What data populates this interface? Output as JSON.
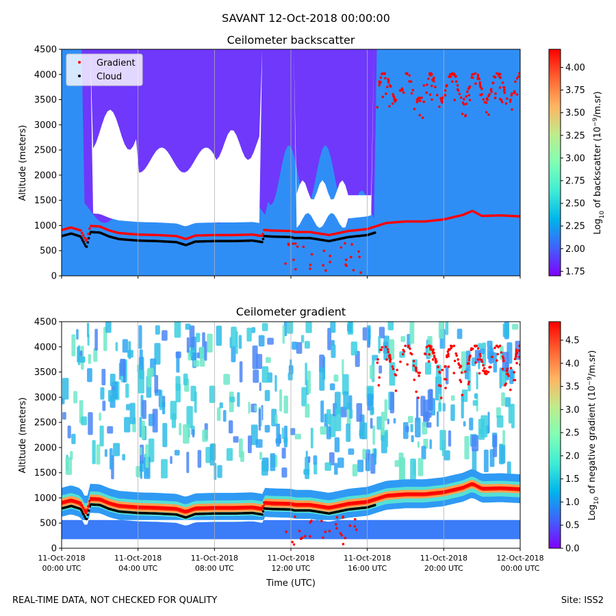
{
  "figure_title": "SAVANT 12-Oct-2018 00:00:00",
  "footer": {
    "left": "REAL-TIME DATA, NOT CHECKED FOR QUALITY",
    "right": "Site: ISS2"
  },
  "colors": {
    "gradient_marker": "#ff0000",
    "cloud_marker": "#000000",
    "colormap": [
      "#8000ff",
      "#4062fa",
      "#00b5eb",
      "#40ecd4",
      "#80ffb4",
      "#c0eb8d",
      "#ffb462",
      "#ff6130",
      "#ff0000"
    ]
  },
  "chart_data": [
    {
      "type": "heatmap",
      "id": "backscatter",
      "title": "Ceilometer backscatter",
      "xlabel": "",
      "ylabel": "Altitude (meters)",
      "xlim_hours": [
        0,
        24
      ],
      "ylim": [
        0,
        4500
      ],
      "yticks": [
        0,
        500,
        1000,
        1500,
        2000,
        2500,
        3000,
        3500,
        4000,
        4500
      ],
      "show_xtick_labels": false,
      "colorbar": {
        "label_prefix": "Log",
        "label_sub": "10",
        "label_mid": " of backscatter (10",
        "label_sup": "−9",
        "label_suffix": "/m.sr)",
        "vmin": 1.7,
        "vmax": 4.2,
        "ticks": [
          "1.75",
          "2.00",
          "2.25",
          "2.50",
          "2.75",
          "3.00",
          "3.25",
          "3.50",
          "3.75",
          "4.00"
        ]
      },
      "legend": {
        "position": "upper-left",
        "entries": [
          {
            "label": "Gradient",
            "color": "#ff0000"
          },
          {
            "label": "Cloud",
            "color": "#000000"
          }
        ]
      }
    },
    {
      "type": "heatmap",
      "id": "gradient",
      "title": "Ceilometer gradient",
      "xlabel": "Time (UTC)",
      "ylabel": "Altitude (meters)",
      "xlim_hours": [
        0,
        24
      ],
      "ylim": [
        0,
        4500
      ],
      "yticks": [
        0,
        500,
        1000,
        1500,
        2000,
        2500,
        3000,
        3500,
        4000,
        4500
      ],
      "show_xtick_labels": true,
      "colorbar": {
        "label_prefix": "Log",
        "label_sub": "10",
        "label_mid": " of negative gradient (10",
        "label_sup": "−9",
        "label_suffix": "/m.sr)",
        "vmin": 0.0,
        "vmax": 4.9,
        "ticks": [
          "0.0",
          "0.5",
          "1.0",
          "1.5",
          "2.0",
          "2.5",
          "3.0",
          "3.5",
          "4.0",
          "4.5"
        ]
      }
    }
  ],
  "time_ticks": [
    {
      "hours": 0,
      "date": "11-Oct-2018",
      "time": "00:00 UTC"
    },
    {
      "hours": 4,
      "date": "11-Oct-2018",
      "time": "04:00 UTC"
    },
    {
      "hours": 8,
      "date": "11-Oct-2018",
      "time": "08:00 UTC"
    },
    {
      "hours": 12,
      "date": "11-Oct-2018",
      "time": "12:00 UTC"
    },
    {
      "hours": 16,
      "date": "11-Oct-2018",
      "time": "16:00 UTC"
    },
    {
      "hours": 20,
      "date": "11-Oct-2018",
      "time": "20:00 UTC"
    },
    {
      "hours": 24,
      "date": "12-Oct-2018",
      "time": "00:00 UTC"
    }
  ],
  "boundary_layer_height_m": [
    [
      0,
      880
    ],
    [
      0.5,
      930
    ],
    [
      1,
      870
    ],
    [
      1.3,
      650
    ],
    [
      1.5,
      960
    ],
    [
      2,
      950
    ],
    [
      2.5,
      870
    ],
    [
      3,
      820
    ],
    [
      4,
      790
    ],
    [
      5,
      780
    ],
    [
      6,
      760
    ],
    [
      6.5,
      700
    ],
    [
      7,
      770
    ],
    [
      8,
      780
    ],
    [
      9,
      780
    ],
    [
      10,
      790
    ],
    [
      10.5,
      760
    ],
    [
      10.6,
      880
    ],
    [
      11,
      870
    ],
    [
      12,
      860
    ],
    [
      12.2,
      840
    ],
    [
      13,
      840
    ],
    [
      14,
      780
    ],
    [
      15,
      860
    ],
    [
      16,
      900
    ],
    [
      16.5,
      960
    ],
    [
      17,
      1020
    ],
    [
      18,
      1050
    ],
    [
      19,
      1050
    ],
    [
      20,
      1090
    ],
    [
      21,
      1180
    ],
    [
      21.5,
      1260
    ],
    [
      22,
      1160
    ],
    [
      23,
      1170
    ],
    [
      24,
      1150
    ]
  ],
  "upper_gradient_hours_range": [
    16.5,
    24
  ]
}
